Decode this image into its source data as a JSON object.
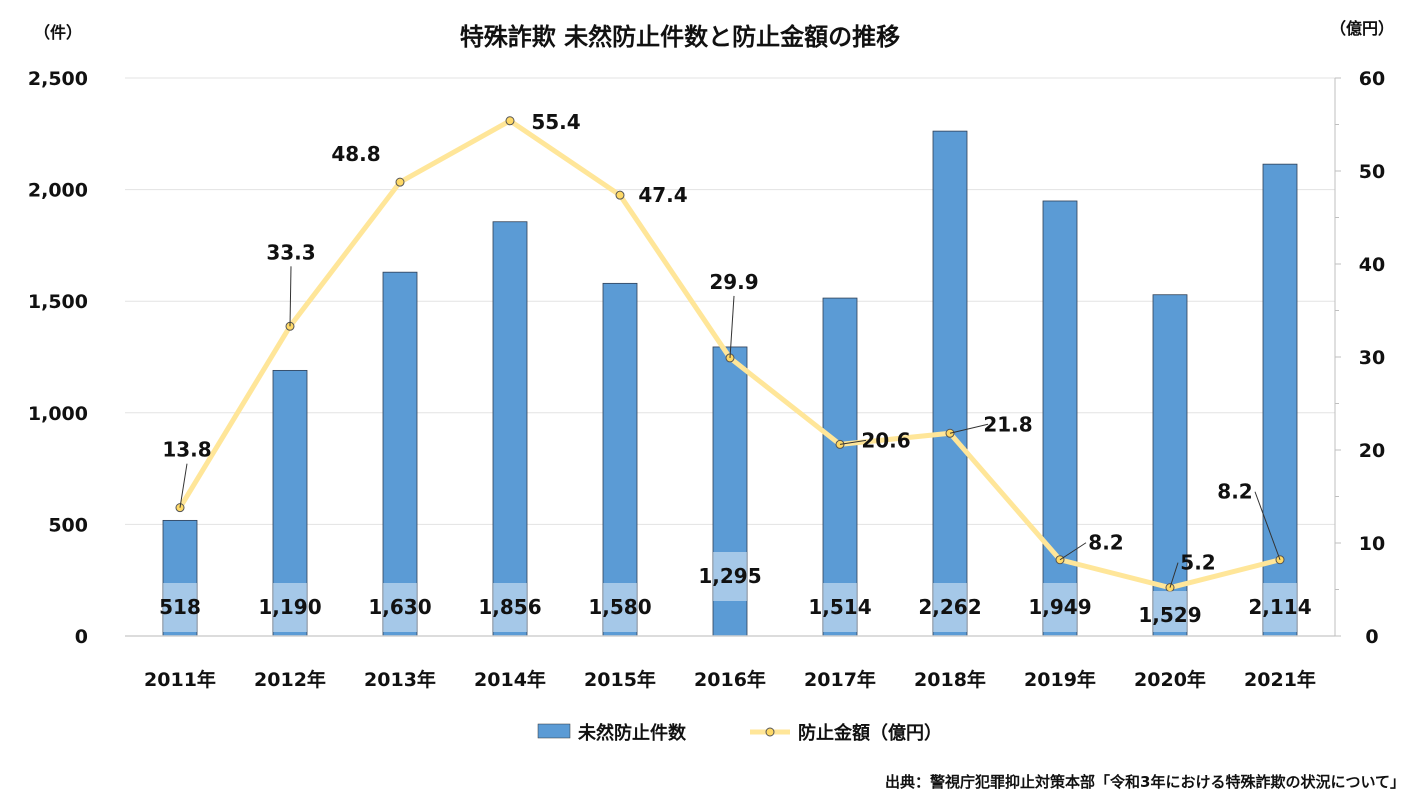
{
  "chart_data": {
    "type": "bar",
    "title": "特殊詐欺 未然防止件数と防止金額の推移",
    "ylabel_left": "（件）",
    "ylabel_right": "（億円）",
    "categories": [
      "2011年",
      "2012年",
      "2013年",
      "2014年",
      "2015年",
      "2016年",
      "2017年",
      "2018年",
      "2019年",
      "2020年",
      "2021年"
    ],
    "ylim_left": [
      0,
      2500
    ],
    "yticks_left": [
      "0",
      "500",
      "1,000",
      "1,500",
      "2,000",
      "2,500"
    ],
    "ylim_right": [
      0,
      60
    ],
    "yticks_right": [
      "0",
      "10",
      "20",
      "30",
      "40",
      "50",
      "60"
    ],
    "grid": true,
    "legend_position": "bottom",
    "series": [
      {
        "name": "未然防止件数",
        "type": "bar",
        "axis": "left",
        "color": "#5B9BD5",
        "values": [
          518,
          1190,
          1630,
          1856,
          1580,
          1295,
          1514,
          2262,
          1949,
          1529,
          2114
        ],
        "labels": [
          "518",
          "1,190",
          "1,630",
          "1,856",
          "1,580",
          "1,295",
          "1,514",
          "2,262",
          "1,949",
          "1,529",
          "2,114"
        ]
      },
      {
        "name": "防止金額（億円）",
        "type": "line",
        "axis": "right",
        "color": "#FFE699",
        "values": [
          13.8,
          33.3,
          48.8,
          55.4,
          47.4,
          29.9,
          20.6,
          21.8,
          8.2,
          5.2,
          8.2
        ],
        "labels": [
          "13.8",
          "33.3",
          "48.8",
          "55.4",
          "47.4",
          "29.9",
          "20.6",
          "21.8",
          "8.2",
          "5.2",
          "8.2"
        ]
      }
    ],
    "source": "出典：警視庁犯罪抑止対策本部「令和3年における特殊詐欺の状況について」"
  }
}
